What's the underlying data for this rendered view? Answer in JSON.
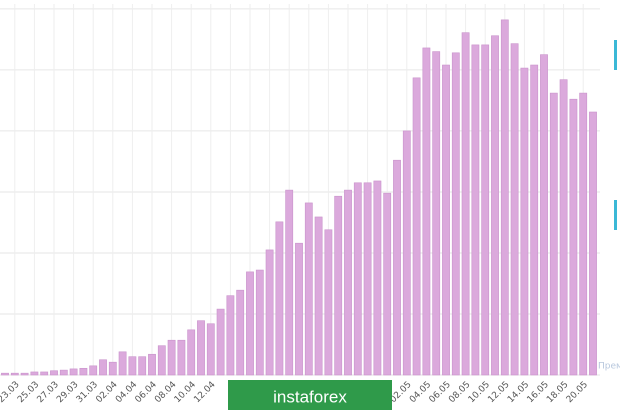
{
  "chart_data": {
    "type": "bar",
    "categories": [
      null,
      "23.03",
      null,
      "25.03",
      null,
      "27.03",
      null,
      "29.03",
      null,
      "31.03",
      null,
      "02.04",
      null,
      "04.04",
      null,
      "06.04",
      null,
      "08.04",
      null,
      "10.04",
      null,
      "12.04",
      null,
      null,
      null,
      null,
      null,
      null,
      null,
      null,
      null,
      null,
      null,
      null,
      null,
      null,
      null,
      null,
      null,
      null,
      null,
      "02.05",
      null,
      "04.05",
      null,
      "06.05",
      null,
      "08.05",
      null,
      "10.05",
      null,
      "12.05",
      null,
      "14.05",
      null,
      "16.05",
      null,
      "18.05",
      null,
      "20.05",
      null
    ],
    "values": [
      0.03,
      0.03,
      0.03,
      0.05,
      0.05,
      0.07,
      0.08,
      0.1,
      0.11,
      0.15,
      0.25,
      0.21,
      0.38,
      0.3,
      0.3,
      0.34,
      0.48,
      0.57,
      0.57,
      0.74,
      0.89,
      0.84,
      1.08,
      1.3,
      1.39,
      1.69,
      1.72,
      2.05,
      2.51,
      3.03,
      2.16,
      2.82,
      2.59,
      2.38,
      2.93,
      3.03,
      3.15,
      3.15,
      3.18,
      2.98,
      3.52,
      4.0,
      4.87,
      5.36,
      5.3,
      5.08,
      5.28,
      5.61,
      5.41,
      5.41,
      5.56,
      5.82,
      5.43,
      5.03,
      5.08,
      5.25,
      4.62,
      4.84,
      4.52,
      4.62,
      4.31
    ],
    "color": "#dba9dc",
    "ylim": [
      0,
      6.08
    ],
    "grid_values": [
      0,
      1,
      2,
      3,
      4,
      5,
      6
    ],
    "grid": true,
    "watermark": "instaforex",
    "overlay_text": "Прем"
  }
}
